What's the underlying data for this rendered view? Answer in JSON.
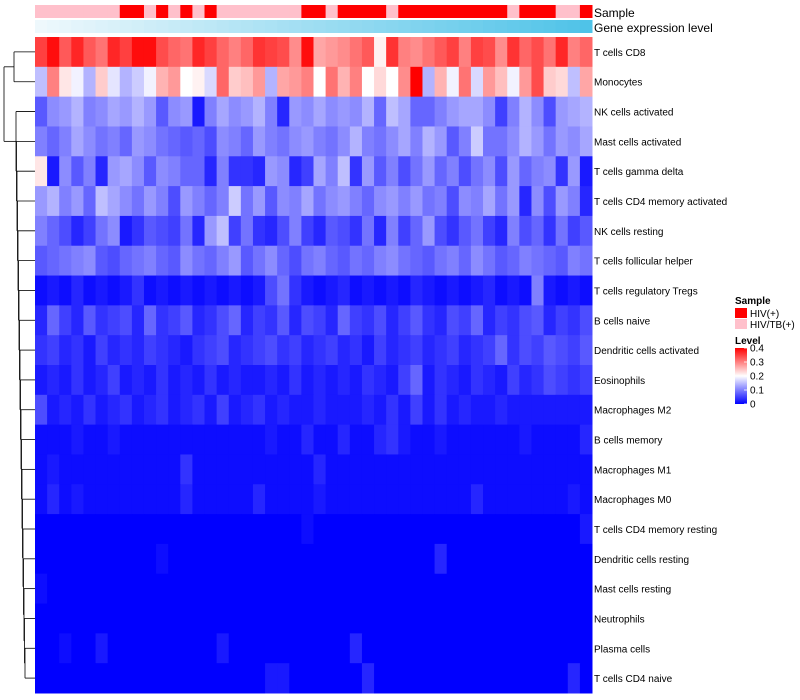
{
  "chart_data": {
    "type": "heatmap",
    "title": "",
    "column_count": 46,
    "annotation_tracks": [
      "Sample",
      "Gene expression level"
    ],
    "sample_groups": [
      "HIV/TB(+)",
      "HIV/TB(+)",
      "HIV/TB(+)",
      "HIV/TB(+)",
      "HIV/TB(+)",
      "HIV/TB(+)",
      "HIV/TB(+)",
      "HIV(+)",
      "HIV(+)",
      "HIV/TB(+)",
      "HIV(+)",
      "HIV/TB(+)",
      "HIV(+)",
      "HIV/TB(+)",
      "HIV(+)",
      "HIV/TB(+)",
      "HIV/TB(+)",
      "HIV/TB(+)",
      "HIV/TB(+)",
      "HIV/TB(+)",
      "HIV/TB(+)",
      "HIV/TB(+)",
      "HIV(+)",
      "HIV(+)",
      "HIV/TB(+)",
      "HIV(+)",
      "HIV(+)",
      "HIV(+)",
      "HIV(+)",
      "HIV/TB(+)",
      "HIV(+)",
      "HIV(+)",
      "HIV(+)",
      "HIV(+)",
      "HIV(+)",
      "HIV(+)",
      "HIV(+)",
      "HIV(+)",
      "HIV(+)",
      "HIV/TB(+)",
      "HIV(+)",
      "HIV(+)",
      "HIV(+)",
      "HIV/TB(+)",
      "HIV/TB(+)",
      "HIV(+)"
    ],
    "rows": [
      "T cells CD8",
      "Monocytes",
      "NK cells activated",
      "Mast cells activated",
      "T cells gamma delta",
      "T cells CD4 memory activated",
      "NK cells resting",
      "T cells follicular helper",
      "T cells regulatory  Tregs",
      "B cells naive",
      "Dendritic cells activated",
      "Eosinophils",
      "Macrophages M2",
      "B cells memory",
      "Macrophages M1",
      "Macrophages M0",
      "T cells CD4 memory resting",
      "Dendritic cells resting",
      "Mast cells resting",
      "Neutrophils",
      "Plasma cells",
      "T cells CD4 naive"
    ],
    "values": [
      [
        0.35,
        0.39,
        0.33,
        0.37,
        0.33,
        0.31,
        0.37,
        0.35,
        0.39,
        0.39,
        0.34,
        0.32,
        0.31,
        0.37,
        0.35,
        0.32,
        0.3,
        0.32,
        0.36,
        0.35,
        0.34,
        0.29,
        0.39,
        0.27,
        0.28,
        0.29,
        0.31,
        0.33,
        0.21,
        0.36,
        0.3,
        0.29,
        0.31,
        0.33,
        0.35,
        0.3,
        0.35,
        0.34,
        0.29,
        0.36,
        0.32,
        0.34,
        0.31,
        0.37,
        0.3,
        0.32
      ],
      [
        0.15,
        0.3,
        0.22,
        0.19,
        0.14,
        0.24,
        0.18,
        0.14,
        0.16,
        0.19,
        0.26,
        0.28,
        0.2,
        0.21,
        0.17,
        0.32,
        0.24,
        0.25,
        0.28,
        0.14,
        0.27,
        0.28,
        0.3,
        0.2,
        0.31,
        0.26,
        0.3,
        0.2,
        0.23,
        0.2,
        0.29,
        0.42,
        0.14,
        0.26,
        0.19,
        0.31,
        0.17,
        0.28,
        0.25,
        0.19,
        0.28,
        0.34,
        0.24,
        0.23,
        0.15,
        0.27
      ],
      [
        0.07,
        0.11,
        0.12,
        0.14,
        0.1,
        0.11,
        0.13,
        0.12,
        0.14,
        0.12,
        0.07,
        0.11,
        0.12,
        0.02,
        0.1,
        0.13,
        0.11,
        0.12,
        0.14,
        0.1,
        0.03,
        0.12,
        0.11,
        0.13,
        0.11,
        0.12,
        0.11,
        0.14,
        0.08,
        0.15,
        0.13,
        0.08,
        0.08,
        0.1,
        0.12,
        0.13,
        0.13,
        0.11,
        0.05,
        0.1,
        0.14,
        0.11,
        0.06,
        0.12,
        0.13,
        0.14
      ],
      [
        0.1,
        0.08,
        0.1,
        0.13,
        0.11,
        0.09,
        0.1,
        0.08,
        0.12,
        0.11,
        0.09,
        0.08,
        0.07,
        0.08,
        0.06,
        0.11,
        0.1,
        0.08,
        0.12,
        0.1,
        0.09,
        0.11,
        0.12,
        0.1,
        0.09,
        0.11,
        0.14,
        0.1,
        0.09,
        0.11,
        0.13,
        0.1,
        0.14,
        0.12,
        0.07,
        0.1,
        0.16,
        0.09,
        0.09,
        0.11,
        0.14,
        0.12,
        0.09,
        0.12,
        0.11,
        0.13
      ],
      [
        0.22,
        0.02,
        0.11,
        0.07,
        0.1,
        0.03,
        0.12,
        0.13,
        0.11,
        0.07,
        0.11,
        0.1,
        0.08,
        0.08,
        0.03,
        0.1,
        0.04,
        0.04,
        0.03,
        0.12,
        0.11,
        0.03,
        0.05,
        0.13,
        0.1,
        0.15,
        0.04,
        0.12,
        0.07,
        0.1,
        0.06,
        0.09,
        0.12,
        0.08,
        0.1,
        0.06,
        0.09,
        0.11,
        0.06,
        0.12,
        0.08,
        0.1,
        0.11,
        0.04,
        0.12,
        0.02
      ],
      [
        0.12,
        0.14,
        0.1,
        0.12,
        0.08,
        0.15,
        0.13,
        0.11,
        0.09,
        0.12,
        0.1,
        0.06,
        0.12,
        0.1,
        0.08,
        0.1,
        0.16,
        0.09,
        0.12,
        0.07,
        0.11,
        0.1,
        0.13,
        0.09,
        0.11,
        0.12,
        0.1,
        0.08,
        0.11,
        0.12,
        0.1,
        0.12,
        0.09,
        0.1,
        0.06,
        0.11,
        0.1,
        0.13,
        0.09,
        0.12,
        0.03,
        0.11,
        0.06,
        0.12,
        0.1,
        0.03
      ],
      [
        0.1,
        0.08,
        0.06,
        0.03,
        0.05,
        0.09,
        0.11,
        0.02,
        0.04,
        0.07,
        0.06,
        0.05,
        0.09,
        0.03,
        0.12,
        0.15,
        0.05,
        0.09,
        0.04,
        0.03,
        0.06,
        0.1,
        0.05,
        0.03,
        0.07,
        0.06,
        0.04,
        0.09,
        0.03,
        0.1,
        0.05,
        0.08,
        0.12,
        0.06,
        0.04,
        0.07,
        0.09,
        0.05,
        0.03,
        0.1,
        0.06,
        0.08,
        0.04,
        0.09,
        0.05,
        0.07
      ],
      [
        0.07,
        0.08,
        0.09,
        0.1,
        0.11,
        0.07,
        0.06,
        0.08,
        0.09,
        0.1,
        0.08,
        0.07,
        0.11,
        0.09,
        0.08,
        0.1,
        0.12,
        0.07,
        0.09,
        0.11,
        0.08,
        0.06,
        0.09,
        0.1,
        0.08,
        0.07,
        0.09,
        0.08,
        0.1,
        0.11,
        0.09,
        0.08,
        0.07,
        0.09,
        0.1,
        0.08,
        0.11,
        0.09,
        0.07,
        0.08,
        0.1,
        0.09,
        0.08,
        0.07,
        0.1,
        0.09
      ],
      [
        0.01,
        0.02,
        0.01,
        0.03,
        0.01,
        0.02,
        0.01,
        0.02,
        0.04,
        0.01,
        0.02,
        0.01,
        0.02,
        0.01,
        0.02,
        0.01,
        0.02,
        0.01,
        0.02,
        0.06,
        0.09,
        0.04,
        0.02,
        0.01,
        0.02,
        0.03,
        0.01,
        0.02,
        0.01,
        0.02,
        0.01,
        0.03,
        0.02,
        0.01,
        0.02,
        0.01,
        0.02,
        0.03,
        0.01,
        0.02,
        0.01,
        0.1,
        0.02,
        0.01,
        0.02,
        0.01
      ],
      [
        0.03,
        0.08,
        0.05,
        0.03,
        0.07,
        0.04,
        0.05,
        0.06,
        0.03,
        0.08,
        0.04,
        0.05,
        0.07,
        0.03,
        0.04,
        0.06,
        0.08,
        0.03,
        0.05,
        0.04,
        0.07,
        0.03,
        0.06,
        0.05,
        0.03,
        0.08,
        0.05,
        0.04,
        0.06,
        0.03,
        0.05,
        0.07,
        0.04,
        0.03,
        0.06,
        0.05,
        0.08,
        0.03,
        0.05,
        0.04,
        0.06,
        0.07,
        0.03,
        0.05,
        0.04,
        0.06
      ],
      [
        0.04,
        0.05,
        0.03,
        0.04,
        0.02,
        0.05,
        0.03,
        0.04,
        0.03,
        0.05,
        0.04,
        0.03,
        0.02,
        0.04,
        0.05,
        0.06,
        0.03,
        0.04,
        0.05,
        0.06,
        0.04,
        0.05,
        0.03,
        0.04,
        0.05,
        0.03,
        0.04,
        0.02,
        0.05,
        0.03,
        0.04,
        0.05,
        0.03,
        0.04,
        0.05,
        0.03,
        0.04,
        0.05,
        0.08,
        0.04,
        0.06,
        0.05,
        0.07,
        0.06,
        0.05,
        0.07
      ],
      [
        0.02,
        0.03,
        0.02,
        0.04,
        0.02,
        0.03,
        0.05,
        0.02,
        0.03,
        0.02,
        0.04,
        0.02,
        0.03,
        0.02,
        0.04,
        0.02,
        0.03,
        0.02,
        0.02,
        0.03,
        0.02,
        0.04,
        0.02,
        0.03,
        0.02,
        0.03,
        0.02,
        0.04,
        0.03,
        0.02,
        0.05,
        0.08,
        0.02,
        0.04,
        0.03,
        0.02,
        0.04,
        0.03,
        0.02,
        0.05,
        0.03,
        0.04,
        0.06,
        0.05,
        0.04,
        0.05
      ],
      [
        0.06,
        0.02,
        0.03,
        0.02,
        0.04,
        0.02,
        0.03,
        0.04,
        0.02,
        0.03,
        0.04,
        0.02,
        0.03,
        0.04,
        0.02,
        0.05,
        0.02,
        0.03,
        0.04,
        0.02,
        0.03,
        0.02,
        0.02,
        0.03,
        0.02,
        0.02,
        0.02,
        0.03,
        0.02,
        0.04,
        0.02,
        0.05,
        0.02,
        0.04,
        0.02,
        0.03,
        0.02,
        0.02,
        0.03,
        0.02,
        0.02,
        0.02,
        0.02,
        0.02,
        0.02,
        0.02
      ],
      [
        0.01,
        0.01,
        0.01,
        0.02,
        0.01,
        0.01,
        0.02,
        0.01,
        0.01,
        0.01,
        0.01,
        0.01,
        0.01,
        0.01,
        0.01,
        0.01,
        0.01,
        0.01,
        0.01,
        0.02,
        0.01,
        0.01,
        0.03,
        0.01,
        0.01,
        0.03,
        0.01,
        0.01,
        0.03,
        0.04,
        0.02,
        0.01,
        0.01,
        0.02,
        0.01,
        0.01,
        0.01,
        0.01,
        0.01,
        0.01,
        0.02,
        0.01,
        0.01,
        0.01,
        0.01,
        0.03
      ],
      [
        0.01,
        0.02,
        0.01,
        0.01,
        0.01,
        0.01,
        0.01,
        0.01,
        0.01,
        0.01,
        0.01,
        0.01,
        0.04,
        0.01,
        0.01,
        0.01,
        0.01,
        0.01,
        0.01,
        0.01,
        0.01,
        0.01,
        0.01,
        0.03,
        0.01,
        0.01,
        0.01,
        0.01,
        0.01,
        0.01,
        0.01,
        0.01,
        0.01,
        0.01,
        0.01,
        0.01,
        0.01,
        0.01,
        0.01,
        0.01,
        0.01,
        0.01,
        0.01,
        0.01,
        0.01,
        0.01
      ],
      [
        0.01,
        0.03,
        0.01,
        0.02,
        0.01,
        0.01,
        0.01,
        0.01,
        0.01,
        0.01,
        0.01,
        0.01,
        0.03,
        0.01,
        0.01,
        0.01,
        0.01,
        0.01,
        0.03,
        0.01,
        0.01,
        0.01,
        0.01,
        0.02,
        0.01,
        0.01,
        0.01,
        0.01,
        0.01,
        0.01,
        0.01,
        0.01,
        0.01,
        0.01,
        0.01,
        0.01,
        0.03,
        0.01,
        0.01,
        0.01,
        0.01,
        0.01,
        0.01,
        0.01,
        0.02,
        0.01
      ],
      [
        0.0,
        0.0,
        0.0,
        0.0,
        0.0,
        0.0,
        0.0,
        0.0,
        0.0,
        0.0,
        0.0,
        0.0,
        0.0,
        0.0,
        0.0,
        0.0,
        0.0,
        0.0,
        0.0,
        0.0,
        0.0,
        0.0,
        0.01,
        0.0,
        0.0,
        0.0,
        0.0,
        0.0,
        0.0,
        0.0,
        0.0,
        0.0,
        0.0,
        0.0,
        0.0,
        0.0,
        0.0,
        0.0,
        0.0,
        0.0,
        0.0,
        0.0,
        0.0,
        0.0,
        0.0,
        0.02
      ],
      [
        0.0,
        0.0,
        0.0,
        0.0,
        0.0,
        0.0,
        0.0,
        0.0,
        0.0,
        0.0,
        0.01,
        0.0,
        0.0,
        0.0,
        0.0,
        0.0,
        0.0,
        0.0,
        0.0,
        0.0,
        0.0,
        0.0,
        0.0,
        0.0,
        0.0,
        0.0,
        0.0,
        0.0,
        0.0,
        0.0,
        0.0,
        0.0,
        0.0,
        0.03,
        0.0,
        0.0,
        0.0,
        0.0,
        0.0,
        0.0,
        0.0,
        0.0,
        0.0,
        0.0,
        0.0,
        0.0
      ],
      [
        0.01,
        0.0,
        0.0,
        0.0,
        0.0,
        0.0,
        0.0,
        0.0,
        0.0,
        0.0,
        0.0,
        0.0,
        0.0,
        0.0,
        0.0,
        0.0,
        0.0,
        0.0,
        0.0,
        0.0,
        0.0,
        0.0,
        0.0,
        0.0,
        0.0,
        0.0,
        0.0,
        0.0,
        0.0,
        0.0,
        0.0,
        0.0,
        0.0,
        0.0,
        0.0,
        0.0,
        0.0,
        0.0,
        0.0,
        0.0,
        0.0,
        0.0,
        0.0,
        0.0,
        0.0,
        0.0
      ],
      [
        0.0,
        0.0,
        0.0,
        0.0,
        0.0,
        0.0,
        0.0,
        0.0,
        0.0,
        0.0,
        0.0,
        0.0,
        0.0,
        0.0,
        0.0,
        0.0,
        0.0,
        0.0,
        0.0,
        0.0,
        0.0,
        0.0,
        0.0,
        0.0,
        0.0,
        0.0,
        0.0,
        0.0,
        0.0,
        0.0,
        0.0,
        0.0,
        0.0,
        0.0,
        0.0,
        0.0,
        0.0,
        0.0,
        0.0,
        0.0,
        0.0,
        0.0,
        0.0,
        0.0,
        0.0,
        0.0
      ],
      [
        0.0,
        0.0,
        0.01,
        0.0,
        0.0,
        0.02,
        0.0,
        0.0,
        0.0,
        0.0,
        0.0,
        0.0,
        0.0,
        0.0,
        0.0,
        0.02,
        0.0,
        0.0,
        0.0,
        0.0,
        0.0,
        0.0,
        0.0,
        0.0,
        0.0,
        0.0,
        0.03,
        0.0,
        0.0,
        0.0,
        0.0,
        0.0,
        0.0,
        0.0,
        0.0,
        0.0,
        0.0,
        0.0,
        0.0,
        0.0,
        0.0,
        0.0,
        0.0,
        0.0,
        0.0,
        0.0
      ],
      [
        0.0,
        0.0,
        0.0,
        0.0,
        0.0,
        0.0,
        0.0,
        0.0,
        0.0,
        0.0,
        0.0,
        0.0,
        0.0,
        0.0,
        0.0,
        0.0,
        0.0,
        0.0,
        0.0,
        0.02,
        0.02,
        0.0,
        0.0,
        0.0,
        0.0,
        0.0,
        0.0,
        0.03,
        0.0,
        0.0,
        0.0,
        0.0,
        0.0,
        0.0,
        0.0,
        0.0,
        0.0,
        0.0,
        0.0,
        0.0,
        0.0,
        0.0,
        0.0,
        0.0,
        0.03,
        0.0
      ]
    ],
    "color_scale": {
      "min": 0,
      "max": 0.4,
      "low": "#0000ff",
      "mid": "#ffffff",
      "high": "#ff0000",
      "mid_value": 0.2
    },
    "legend": {
      "sample_title": "Sample",
      "sample_entries": [
        {
          "label": "HIV(+)",
          "color": "#ff0000"
        },
        {
          "label": "HIV/TB(+)",
          "color": "#ffc0cb"
        }
      ],
      "level_title": "Level",
      "level_ticks": [
        "0.4",
        "0.3",
        "0.2",
        "0.1",
        "0"
      ],
      "placement": "right"
    }
  }
}
